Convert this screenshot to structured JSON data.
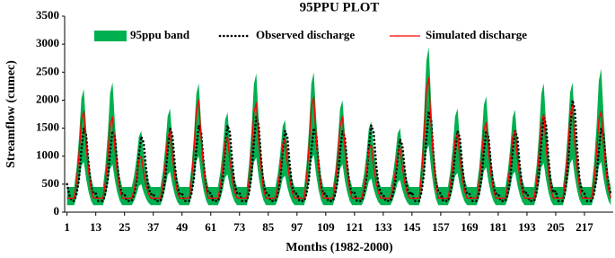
{
  "chart_data": {
    "type": "band_line",
    "title": "95PPU PLOT",
    "x_label": "Months (1982-2000)",
    "y_label": "Streamflow (cumec)",
    "x": [
      1,
      2,
      3,
      4,
      5,
      6,
      7,
      8,
      9,
      10,
      11,
      12,
      13,
      14,
      15,
      16,
      17,
      18,
      19,
      20,
      21,
      22,
      23,
      24,
      25,
      26,
      27,
      28,
      29,
      30,
      31,
      32,
      33,
      34,
      35,
      36,
      37,
      38,
      39,
      40,
      41,
      42,
      43,
      44,
      45,
      46,
      47,
      48,
      49,
      50,
      51,
      52,
      53,
      54,
      55,
      56,
      57,
      58,
      59,
      60,
      61,
      62,
      63,
      64,
      65,
      66,
      67,
      68,
      69,
      70,
      71,
      72,
      73,
      74,
      75,
      76,
      77,
      78,
      79,
      80,
      81,
      82,
      83,
      84,
      85,
      86,
      87,
      88,
      89,
      90,
      91,
      92,
      93,
      94,
      95,
      96,
      97,
      98,
      99,
      100,
      101,
      102,
      103,
      104,
      105,
      106,
      107,
      108,
      109,
      110,
      111,
      112,
      113,
      114,
      115,
      116,
      117,
      118,
      119,
      120,
      121,
      122,
      123,
      124,
      125,
      126,
      127,
      128,
      129,
      130,
      131,
      132,
      133,
      134,
      135,
      136,
      137,
      138,
      139,
      140,
      141,
      142,
      143,
      144,
      145,
      146,
      147,
      148,
      149,
      150,
      151,
      152,
      153,
      154,
      155,
      156,
      157,
      158,
      159,
      160,
      161,
      162,
      163,
      164,
      165,
      166,
      167,
      168,
      169,
      170,
      171,
      172,
      173,
      174,
      175,
      176,
      177,
      178,
      179,
      180,
      181,
      182,
      183,
      184,
      185,
      186,
      187,
      188,
      189,
      190,
      191,
      192,
      193,
      194,
      195,
      196,
      197,
      198,
      199,
      200,
      201,
      202,
      203,
      204,
      205,
      206,
      207,
      208,
      209,
      210,
      211,
      212,
      213,
      214,
      215,
      216,
      217,
      218,
      219,
      220,
      221,
      222,
      223,
      224,
      225,
      226,
      227,
      228
    ],
    "series": [
      {
        "name": "95ppu band",
        "color": "#00b050",
        "lower": [
          125,
          125,
          125,
          125,
          280,
          515,
          825,
          900,
          590,
          360,
          205,
          125,
          125,
          125,
          125,
          125,
          270,
          490,
          780,
          850,
          560,
          345,
          200,
          125,
          125,
          125,
          125,
          125,
          200,
          315,
          465,
          500,
          350,
          240,
          165,
          125,
          125,
          125,
          125,
          125,
          245,
          425,
          665,
          725,
          485,
          305,
          185,
          125,
          125,
          125,
          125,
          125,
          300,
          565,
          915,
          1000,
          650,
          390,
          215,
          125,
          125,
          125,
          125,
          125,
          235,
          400,
          620,
          675,
          455,
          290,
          180,
          125,
          125,
          125,
          125,
          125,
          295,
          550,
          890,
          975,
          635,
          380,
          210,
          125,
          125,
          125,
          125,
          125,
          230,
          390,
          600,
          650,
          440,
          285,
          180,
          125,
          125,
          125,
          125,
          125,
          305,
          575,
          935,
          1025,
          665,
          395,
          215,
          125,
          125,
          125,
          125,
          125,
          270,
          490,
          780,
          850,
          560,
          345,
          200,
          125,
          125,
          125,
          125,
          125,
          220,
          365,
          555,
          600,
          410,
          270,
          175,
          125,
          125,
          125,
          125,
          125,
          215,
          350,
          530,
          575,
          395,
          260,
          170,
          125,
          125,
          125,
          125,
          125,
          340,
          665,
          1095,
          1200,
          770,
          450,
          235,
          125,
          125,
          125,
          125,
          125,
          240,
          415,
          645,
          700,
          470,
          300,
          185,
          125,
          125,
          125,
          125,
          125,
          260,
          465,
          735,
          800,
          530,
          330,
          195,
          125,
          125,
          125,
          125,
          125,
          245,
          425,
          665,
          725,
          485,
          305,
          185,
          125,
          125,
          125,
          125,
          125,
          275,
          500,
          800,
          875,
          575,
          350,
          200,
          125,
          125,
          125,
          125,
          125,
          290,
          540,
          870,
          950,
          620,
          375,
          210,
          125,
          125,
          125,
          125,
          125,
          280,
          515,
          825,
          900,
          590,
          360,
          205,
          125
        ],
        "upper": [
          450,
          450,
          450,
          450,
          800,
          1330,
          2030,
          2200,
          1500,
          980,
          630,
          450,
          450,
          450,
          450,
          450,
          820,
          1390,
          2130,
          2320,
          1570,
          1010,
          640,
          450,
          450,
          450,
          450,
          450,
          650,
          950,
          1350,
          1450,
          1050,
          750,
          550,
          450,
          450,
          450,
          450,
          450,
          730,
          1150,
          1710,
          1850,
          1290,
          870,
          590,
          450,
          450,
          450,
          450,
          450,
          820,
          1380,
          2120,
          2300,
          1560,
          1010,
          640,
          450,
          450,
          450,
          450,
          450,
          720,
          1120,
          1650,
          1780,
          1250,
          850,
          580,
          450,
          450,
          450,
          450,
          450,
          860,
          1470,
          2280,
          2480,
          1670,
          1060,
          650,
          450,
          450,
          450,
          450,
          450,
          690,
          1050,
          1530,
          1650,
          1170,
          810,
          570,
          450,
          450,
          450,
          450,
          450,
          860,
          1480,
          2300,
          2500,
          1680,
          1070,
          660,
          450,
          450,
          450,
          450,
          450,
          760,
          1230,
          1850,
          2000,
          1380,
          920,
          610,
          450,
          450,
          450,
          450,
          450,
          680,
          1040,
          1500,
          1620,
          1150,
          800,
          570,
          450,
          450,
          450,
          450,
          450,
          660,
          980,
          1400,
          1500,
          1080,
          770,
          560,
          450,
          450,
          450,
          450,
          450,
          950,
          1700,
          2700,
          2950,
          1950,
          1200,
          700,
          450,
          450,
          450,
          450,
          450,
          730,
          1150,
          1710,
          1850,
          1290,
          870,
          590,
          450,
          450,
          450,
          450,
          450,
          770,
          1260,
          1910,
          2070,
          1420,
          940,
          610,
          450,
          450,
          450,
          450,
          450,
          730,
          1140,
          1690,
          1830,
          1280,
          860,
          590,
          450,
          450,
          450,
          450,
          450,
          820,
          1380,
          2120,
          2300,
          1560,
          1010,
          640,
          450,
          450,
          450,
          450,
          450,
          820,
          1390,
          2130,
          2320,
          1570,
          1010,
          640,
          450,
          450,
          450,
          450,
          450,
          870,
          1510,
          2350,
          2560,
          1720,
          1080,
          660,
          450
        ]
      },
      {
        "name": "Observed discharge",
        "color": "#000000",
        "dash": "dotted",
        "values": [
          500,
          300,
          200,
          200,
          330,
          590,
          1110,
          1500,
          1370,
          850,
          460,
          330,
          330,
          200,
          200,
          200,
          330,
          580,
          1080,
          1450,
          1330,
          830,
          450,
          330,
          320,
          200,
          200,
          200,
          320,
          550,
          1010,
          1350,
          1240,
          780,
          430,
          320,
          330,
          200,
          200,
          200,
          330,
          590,
          1110,
          1500,
          1370,
          850,
          460,
          330,
          340,
          200,
          200,
          200,
          340,
          610,
          1150,
          1550,
          1420,
          880,
          470,
          340,
          340,
          200,
          200,
          200,
          340,
          610,
          1150,
          1550,
          1420,
          880,
          470,
          340,
          350,
          200,
          200,
          200,
          350,
          650,
          1250,
          1700,
          1550,
          950,
          500,
          350,
          330,
          200,
          200,
          200,
          330,
          580,
          1080,
          1450,
          1330,
          830,
          450,
          330,
          330,
          200,
          200,
          200,
          330,
          590,
          1110,
          1500,
          1370,
          850,
          460,
          330,
          330,
          200,
          200,
          200,
          330,
          580,
          1080,
          1450,
          1330,
          830,
          450,
          330,
          340,
          200,
          200,
          200,
          340,
          610,
          1150,
          1550,
          1420,
          880,
          470,
          340,
          310,
          200,
          200,
          200,
          310,
          530,
          970,
          1300,
          1190,
          750,
          420,
          310,
          360,
          200,
          200,
          200,
          360,
          680,
          1320,
          1800,
          1640,
          1000,
          520,
          360,
          330,
          200,
          200,
          200,
          330,
          580,
          1080,
          1450,
          1330,
          830,
          450,
          330,
          330,
          200,
          200,
          200,
          330,
          580,
          1080,
          1450,
          1330,
          830,
          450,
          330,
          330,
          200,
          200,
          200,
          330,
          580,
          1080,
          1450,
          1330,
          830,
          450,
          330,
          350,
          200,
          200,
          200,
          350,
          650,
          1250,
          1700,
          1550,
          950,
          500,
          350,
          380,
          200,
          200,
          200,
          380,
          740,
          1460,
          2000,
          1820,
          1100,
          560,
          380,
          330,
          200,
          200,
          200,
          330,
          590,
          1110,
          1500,
          1370,
          850,
          460,
          330
        ]
      },
      {
        "name": "Simulated discharge",
        "color": "#ff0000",
        "values": [
          250,
          250,
          250,
          250,
          560,
          1030,
          1650,
          1800,
          1180,
          720,
          410,
          250,
          250,
          250,
          250,
          250,
          540,
          980,
          1560,
          1700,
          1120,
          690,
          400,
          250,
          250,
          250,
          250,
          250,
          400,
          630,
          930,
          1000,
          700,
          480,
          330,
          250,
          250,
          250,
          250,
          250,
          490,
          850,
          1330,
          1450,
          970,
          610,
          370,
          250,
          250,
          250,
          250,
          250,
          600,
          1130,
          1830,
          2000,
          1300,
          780,
          430,
          250,
          250,
          250,
          250,
          250,
          470,
          800,
          1240,
          1350,
          910,
          580,
          360,
          250,
          250,
          250,
          250,
          250,
          590,
          1100,
          1780,
          1950,
          1270,
          760,
          420,
          250,
          250,
          250,
          250,
          250,
          460,
          780,
          1200,
          1300,
          880,
          570,
          360,
          250,
          250,
          250,
          250,
          250,
          610,
          1150,
          1870,
          2050,
          1330,
          790,
          430,
          250,
          250,
          250,
          250,
          250,
          540,
          980,
          1560,
          1700,
          1120,
          690,
          400,
          250,
          250,
          250,
          250,
          250,
          440,
          730,
          1110,
          1200,
          820,
          540,
          350,
          250,
          250,
          250,
          250,
          250,
          430,
          700,
          1060,
          1150,
          790,
          520,
          340,
          250,
          250,
          250,
          250,
          250,
          680,
          1330,
          2190,
          2400,
          1540,
          900,
          470,
          250,
          250,
          250,
          250,
          250,
          480,
          830,
          1290,
          1400,
          940,
          600,
          370,
          250,
          250,
          250,
          250,
          250,
          520,
          930,
          1470,
          1600,
          1060,
          660,
          390,
          250,
          250,
          250,
          250,
          250,
          490,
          850,
          1330,
          1450,
          970,
          610,
          370,
          250,
          250,
          250,
          250,
          250,
          550,
          1000,
          1600,
          1750,
          1150,
          700,
          400,
          250,
          250,
          250,
          250,
          250,
          580,
          1080,
          1740,
          1900,
          1240,
          750,
          420,
          250,
          250,
          250,
          250,
          250,
          560,
          1030,
          1650,
          1800,
          1180,
          720,
          410,
          250
        ]
      }
    ],
    "xlim": [
      0,
      229
    ],
    "xticks": [
      1,
      13,
      25,
      37,
      49,
      61,
      73,
      85,
      97,
      109,
      121,
      133,
      145,
      157,
      169,
      181,
      193,
      205,
      217
    ],
    "ylim": [
      0,
      3500
    ],
    "yticks": [
      0,
      500,
      1000,
      1500,
      2000,
      2500,
      3000,
      3500
    ],
    "legend": "top"
  }
}
